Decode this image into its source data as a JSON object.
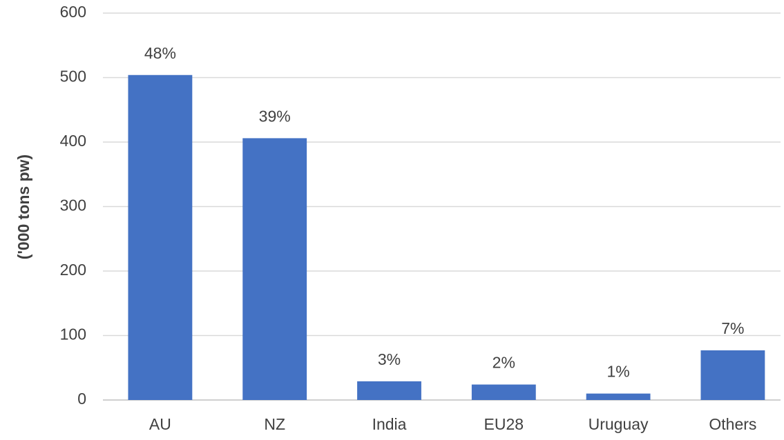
{
  "chart_data": {
    "type": "bar",
    "y_label": "('000 tons pw)",
    "categories": [
      "AU",
      "NZ",
      "India",
      "EU28",
      "Uruguay",
      "Others"
    ],
    "values": [
      504,
      406,
      29,
      24,
      10,
      77
    ],
    "data_labels": [
      "48%",
      "39%",
      "3%",
      "2%",
      "1%",
      "7%"
    ],
    "color": "#4472c4",
    "ylim": [
      0,
      600
    ],
    "yticks": [
      0,
      100,
      200,
      300,
      400,
      500,
      600
    ],
    "grid": true
  }
}
